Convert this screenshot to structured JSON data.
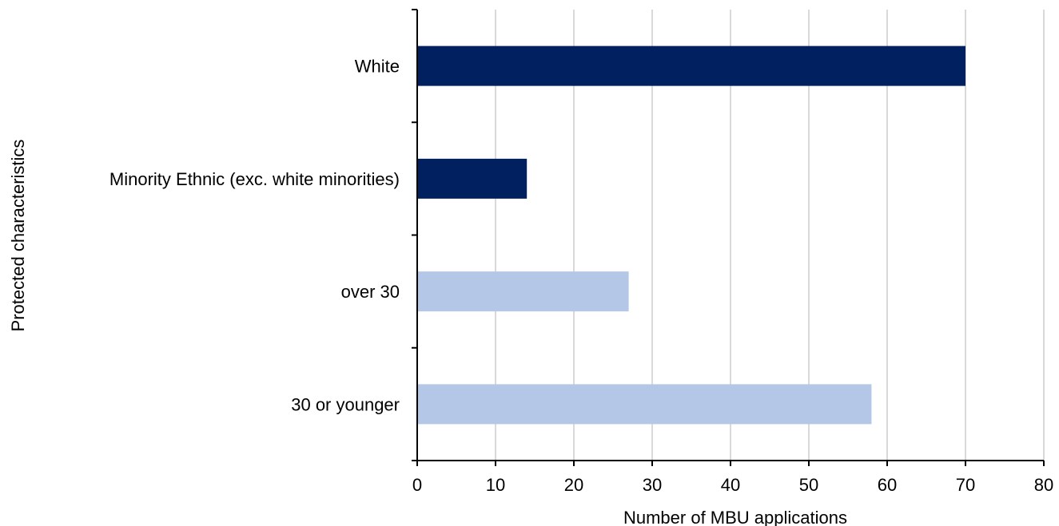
{
  "chart_data": {
    "type": "bar",
    "orientation": "horizontal",
    "xlabel": "Number  of MBU applications",
    "ylabel": "Protected characteristics",
    "xlim": [
      0,
      80
    ],
    "xticks": [
      0,
      10,
      20,
      30,
      40,
      50,
      60,
      70,
      80
    ],
    "grid": "vertical",
    "categories": [
      "White",
      "Minority Ethnic (exc. white minorities)",
      "over 30",
      "30 or younger"
    ],
    "values": [
      70,
      14,
      27,
      58
    ],
    "colors": [
      "#002060",
      "#002060",
      "#B4C7E7",
      "#B4C7E7"
    ],
    "gridline_color": "#D9D9D9",
    "axis_color": "#000000"
  }
}
